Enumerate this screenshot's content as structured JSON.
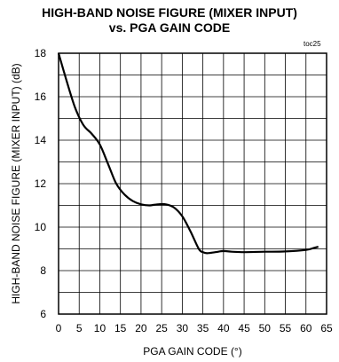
{
  "chart_data": {
    "type": "line",
    "title": "HIGH-BAND NOISE FIGURE (MIXER INPUT)",
    "subtitle": "vs. PGA GAIN CODE",
    "tag": "toc25",
    "xlabel": "PGA GAIN CODE (°)",
    "ylabel": "HIGH-BAND NOISE FIGURE (MIXER INPUT) (dB)",
    "xlim": [
      0,
      65
    ],
    "ylim": [
      6,
      18
    ],
    "x_ticks": [
      "0",
      "5",
      "10",
      "15",
      "20",
      "25",
      "30",
      "35",
      "40",
      "45",
      "50",
      "55",
      "60",
      "65"
    ],
    "y_ticks": [
      "6",
      "8",
      "10",
      "12",
      "14",
      "16",
      "18"
    ],
    "grid": true,
    "series": [
      {
        "x": [
          0,
          2,
          4,
          6,
          8,
          10,
          12,
          14,
          16,
          18,
          20,
          22,
          24,
          26,
          28,
          30,
          32,
          34,
          35,
          36,
          38,
          40,
          42,
          45,
          50,
          55,
          60,
          62,
          63
        ],
        "y": [
          18,
          16.7,
          15.5,
          14.7,
          14.3,
          13.8,
          12.9,
          12.0,
          11.5,
          11.2,
          11.05,
          11.0,
          11.05,
          11.05,
          10.9,
          10.5,
          9.8,
          9.0,
          8.85,
          8.8,
          8.85,
          8.9,
          8.87,
          8.85,
          8.87,
          8.88,
          8.95,
          9.05,
          9.1
        ],
        "color": "#000000"
      }
    ]
  }
}
